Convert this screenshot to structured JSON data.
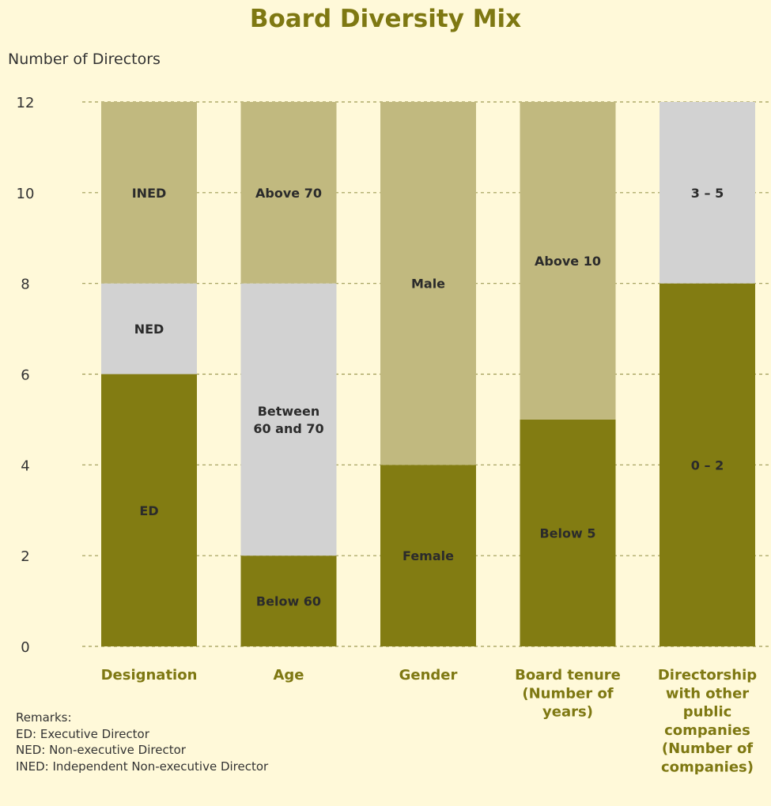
{
  "chart_data": {
    "type": "bar",
    "stacked": true,
    "title": "Board Diversity Mix",
    "ylabel": "Number of Directors",
    "xlabel": "",
    "ylim": [
      0,
      12
    ],
    "yticks": [
      0,
      2,
      4,
      6,
      8,
      10,
      12
    ],
    "grid": "dashed horizontal",
    "legend": "none",
    "categories": [
      {
        "label_lines": [
          "Designation"
        ],
        "segments": [
          {
            "label": "ED",
            "value": 6,
            "color": "#827c12"
          },
          {
            "label": "NED",
            "value": 2,
            "color": "#d2d2d2"
          },
          {
            "label": "INED",
            "value": 4,
            "color": "#c1b97f"
          }
        ]
      },
      {
        "label_lines": [
          "Age"
        ],
        "segments": [
          {
            "label": "Below 60",
            "value": 2,
            "color": "#827c12"
          },
          {
            "label": "Between 60 and 70",
            "label_lines": [
              "Between",
              "60 and 70"
            ],
            "value": 6,
            "color": "#d2d2d2"
          },
          {
            "label": "Above 70",
            "value": 4,
            "color": "#c1b97f"
          }
        ]
      },
      {
        "label_lines": [
          "Gender"
        ],
        "segments": [
          {
            "label": "Female",
            "value": 4,
            "color": "#827c12"
          },
          {
            "label": "Male",
            "value": 8,
            "color": "#c1b97f"
          }
        ]
      },
      {
        "label_lines": [
          "Board tenure",
          "(Number of",
          "years)"
        ],
        "segments": [
          {
            "label": "Below 5",
            "value": 5,
            "color": "#827c12"
          },
          {
            "label": "Above 10",
            "value": 7,
            "color": "#c1b97f"
          }
        ]
      },
      {
        "label_lines": [
          "Directorship",
          "with other",
          "public",
          "companies",
          "(Number of",
          "companies)"
        ],
        "segments": [
          {
            "label": "0 – 2",
            "value": 8,
            "color": "#827c12"
          },
          {
            "label": "3 – 5",
            "value": 4,
            "color": "#d2d2d2"
          }
        ]
      }
    ]
  },
  "remarks": {
    "heading": "Remarks:",
    "lines": [
      "ED: Executive Director",
      "NED: Non-executive Director",
      "INED: Independent Non-executive Director"
    ]
  }
}
